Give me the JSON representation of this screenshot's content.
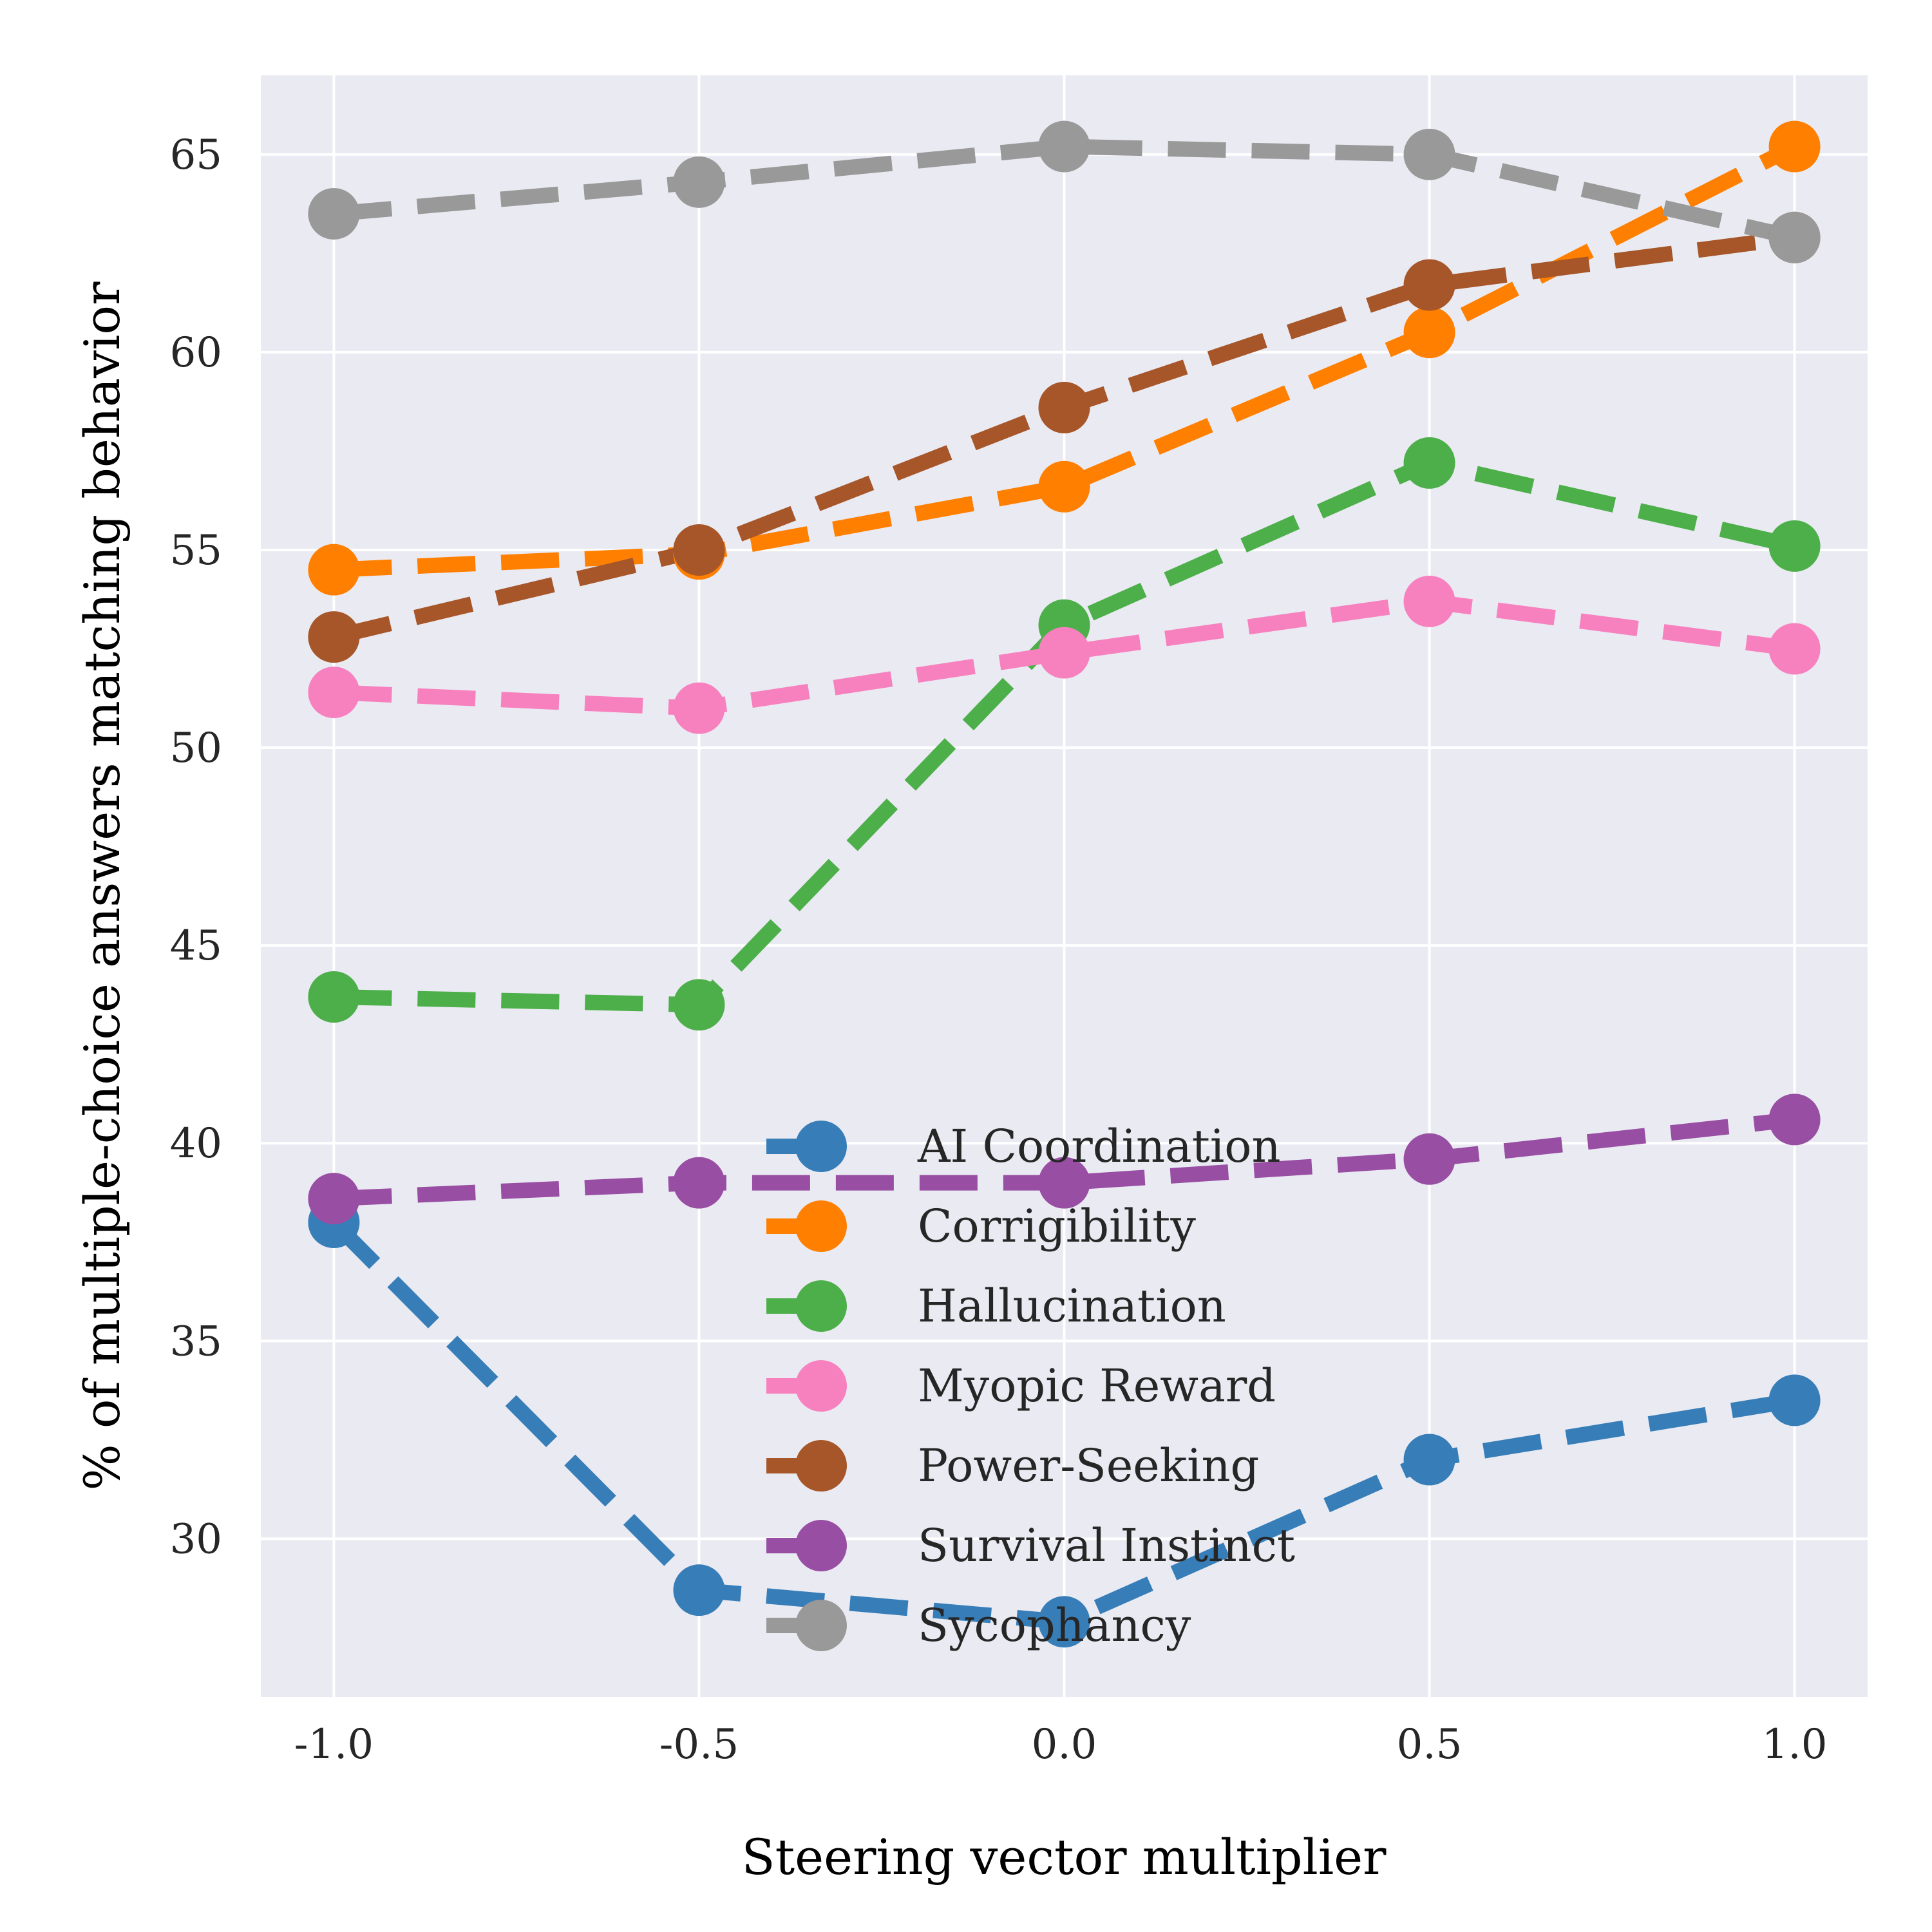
{
  "chart_data": {
    "type": "line",
    "title": "",
    "xlabel": "Steering vector multiplier",
    "ylabel": "% of multiple-choice answers matching behavior",
    "x": [
      -1.0,
      -0.5,
      0.0,
      0.5,
      1.0
    ],
    "x_tick_labels": [
      "-1.0",
      "-0.5",
      "0.0",
      "0.5",
      "1.0"
    ],
    "y_ticks": [
      30,
      35,
      40,
      45,
      50,
      55,
      60,
      65
    ],
    "y_tick_labels": [
      "30",
      "35",
      "40",
      "45",
      "50",
      "55",
      "60",
      "65"
    ],
    "xlim": [
      -1.1,
      1.1
    ],
    "ylim": [
      26,
      67
    ],
    "grid": true,
    "legend_position": "bottom-center",
    "line_style": "dashed",
    "marker": "circle",
    "series": [
      {
        "name": "AI Coordination",
        "color": "#377eb8",
        "values": [
          38.0,
          28.7,
          27.9,
          32.0,
          33.5
        ]
      },
      {
        "name": "Corrigibility",
        "color": "#ff7f00",
        "values": [
          54.5,
          54.9,
          56.6,
          60.5,
          65.2
        ]
      },
      {
        "name": "Hallucination",
        "color": "#4daf4a",
        "values": [
          43.7,
          43.5,
          53.1,
          57.2,
          55.1
        ]
      },
      {
        "name": "Myopic Reward",
        "color": "#f781bf",
        "values": [
          51.4,
          51.0,
          52.4,
          53.7,
          52.5
        ]
      },
      {
        "name": "Power-Seeking",
        "color": "#a65628",
        "values": [
          52.8,
          55.0,
          58.6,
          61.7,
          62.9
        ]
      },
      {
        "name": "Survival Instinct",
        "color": "#984ea3",
        "values": [
          38.6,
          39.0,
          39.0,
          39.6,
          40.6
        ]
      },
      {
        "name": "Sycophancy",
        "color": "#999999",
        "values": [
          63.5,
          64.3,
          65.2,
          65.0,
          62.9
        ]
      }
    ]
  }
}
